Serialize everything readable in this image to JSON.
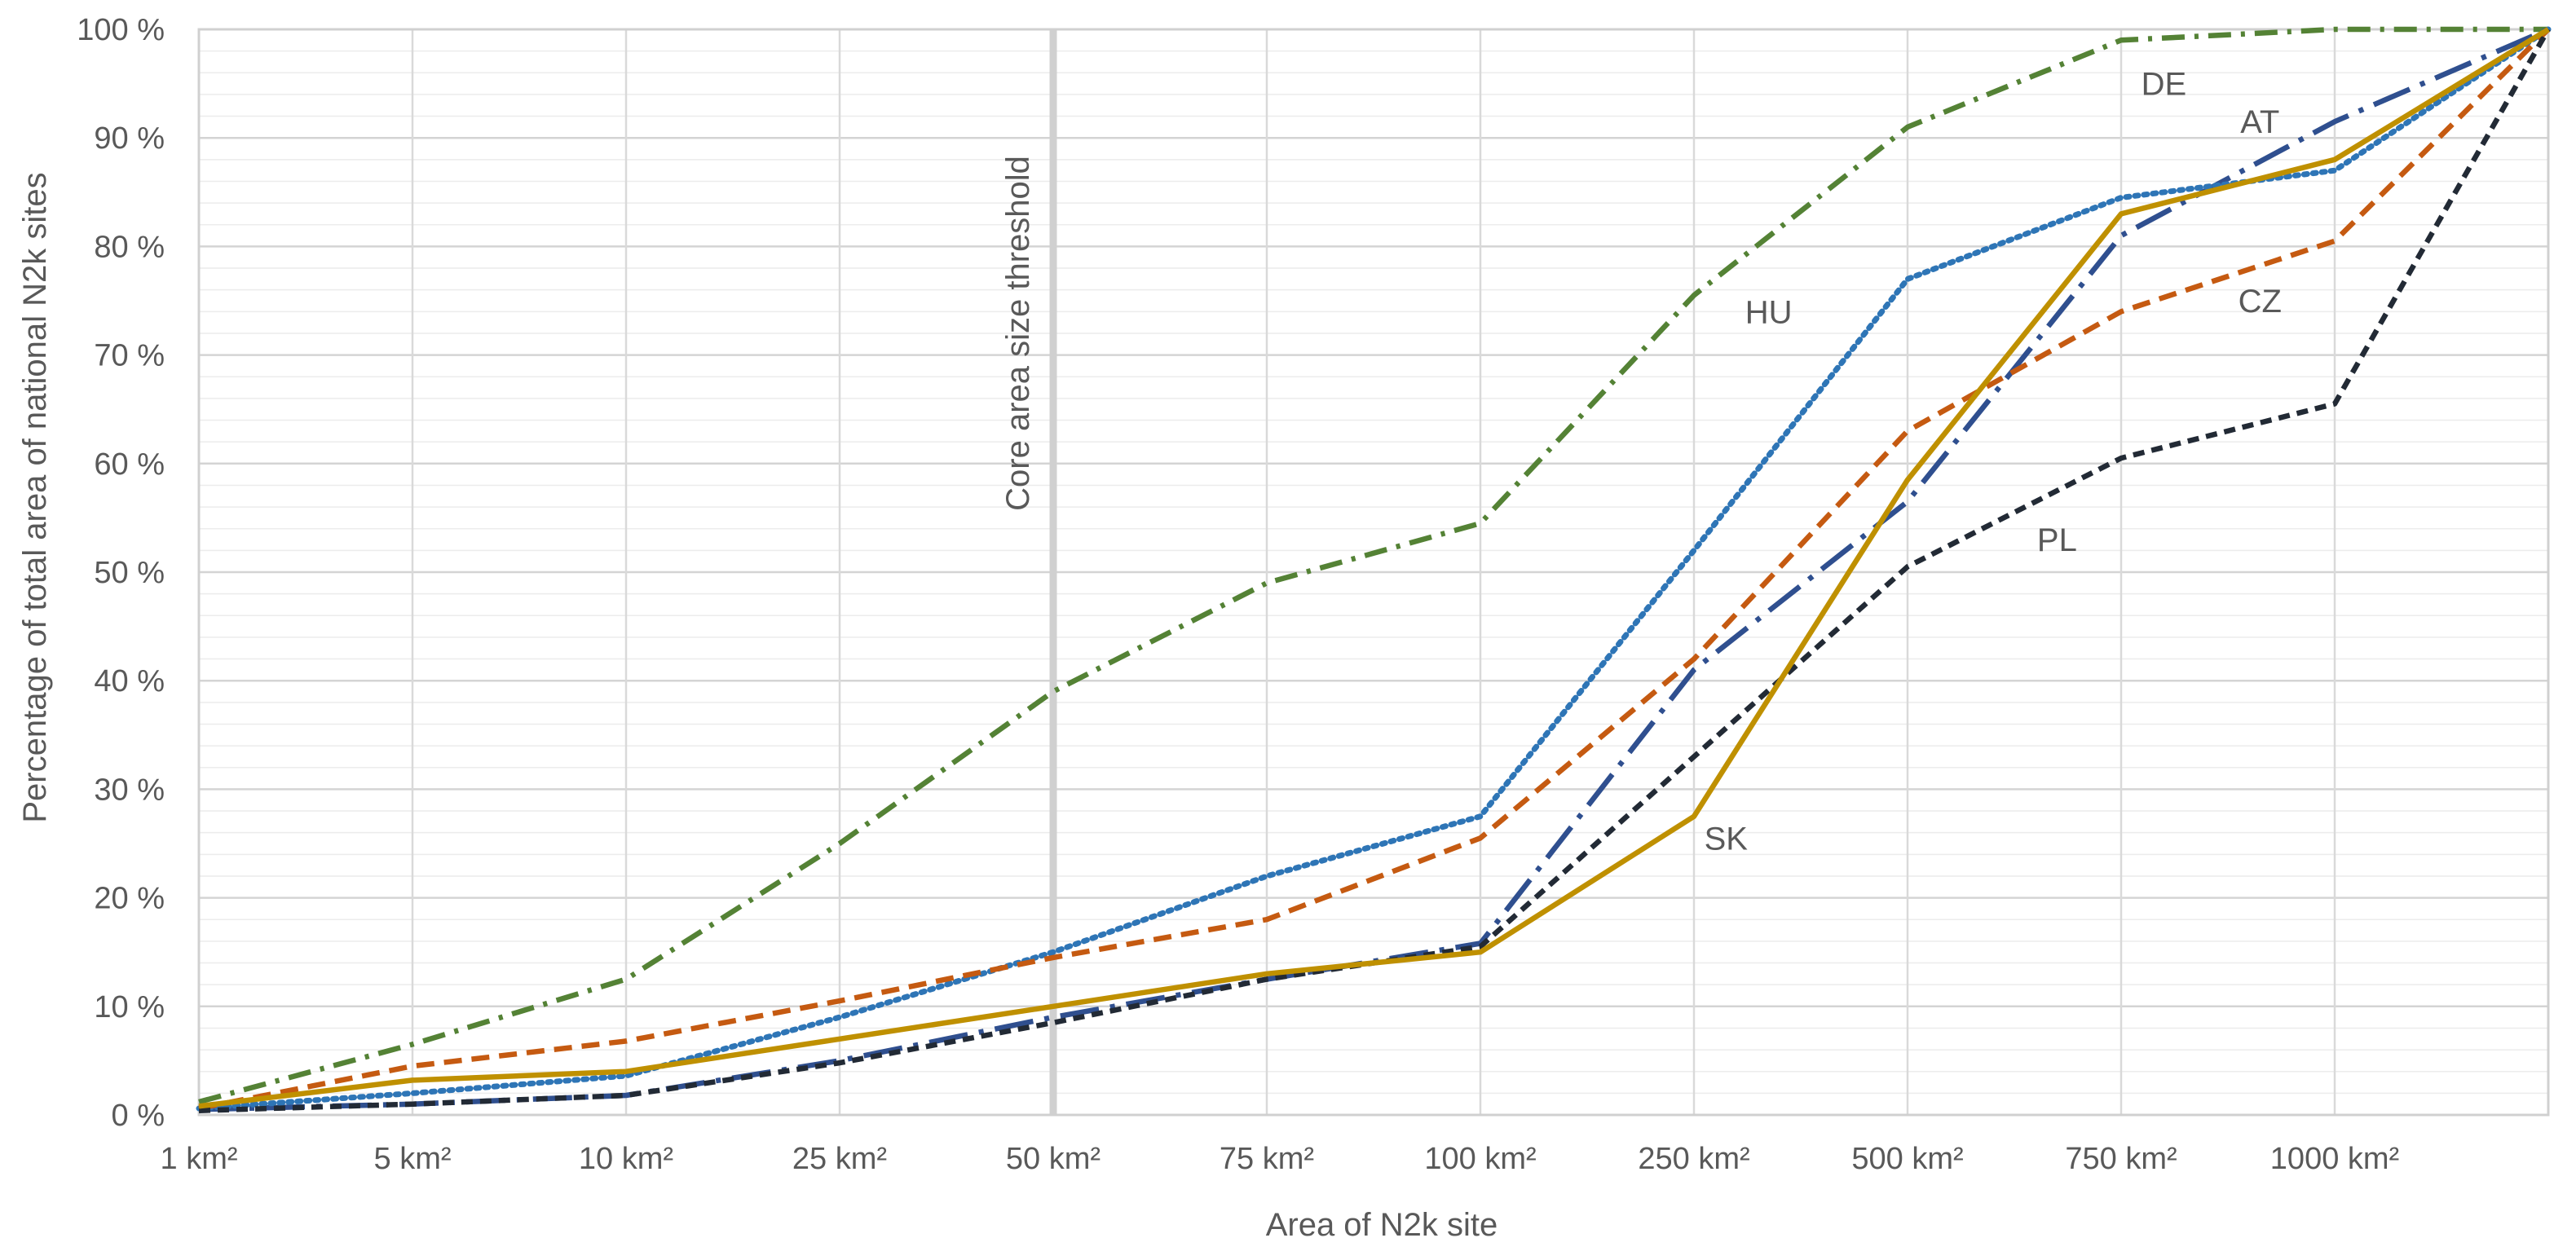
{
  "chart_data": {
    "type": "line",
    "title": "",
    "xlabel": "Area of N2k site",
    "ylabel": "Percentage of total area of national N2k sites",
    "categories": [
      "1 km²",
      "5 km²",
      "10 km²",
      "25 km²",
      "50 km²",
      "75 km²",
      "100 km²",
      "250 km²",
      "500 km²",
      "750 km²",
      "1000 km²",
      ""
    ],
    "ylim": [
      0,
      100
    ],
    "y_ticks": [
      0,
      10,
      20,
      30,
      40,
      50,
      60,
      70,
      80,
      90,
      100
    ],
    "y_tick_labels": [
      "0 %",
      "10 %",
      "20 %",
      "30 %",
      "40 %",
      "50 %",
      "60 %",
      "70 %",
      "80 %",
      "90 %",
      "100 %"
    ],
    "grid": true,
    "legend": "none",
    "threshold": {
      "category_index": 4,
      "label": "Core area size threshold",
      "color": "#d0d0d0"
    },
    "series": [
      {
        "name": "DE",
        "color": "#548235",
        "dash": "dashdot",
        "values": [
          1.2,
          6.5,
          12.5,
          25,
          39,
          49,
          54.5,
          75.5,
          91,
          99,
          100,
          100
        ],
        "label_at": [
          9.2,
          95
        ]
      },
      {
        "name": "AT",
        "color": "#2f4f8f",
        "dash": "longdashdot",
        "values": [
          0.5,
          1,
          1.8,
          5,
          9,
          12.5,
          15.8,
          41,
          56.5,
          81,
          91.5,
          100
        ],
        "label_at": [
          9.65,
          91.5
        ]
      },
      {
        "name": "HU",
        "color": "#2e75b6",
        "dash": "dotted",
        "values": [
          0.6,
          2,
          3.6,
          9,
          15,
          22,
          27.5,
          52,
          77,
          84.5,
          87,
          100
        ],
        "label_at": [
          7.35,
          74
        ]
      },
      {
        "name": "CZ",
        "color": "#c55a11",
        "dash": "dashed",
        "values": [
          0.6,
          4.5,
          6.8,
          10.5,
          14.5,
          18,
          25.5,
          42,
          63,
          74,
          80.5,
          100
        ],
        "label_at": [
          9.65,
          75
        ]
      },
      {
        "name": "PL",
        "color": "#222a35",
        "dash": "shortdash",
        "values": [
          0.4,
          1,
          1.8,
          4.8,
          8.5,
          12.5,
          15.5,
          33,
          50.5,
          60.5,
          65.5,
          100
        ],
        "label_at": [
          8.7,
          53
        ]
      },
      {
        "name": "SK",
        "color": "#bf9000",
        "dash": "solid",
        "values": [
          0.8,
          3.2,
          4,
          7,
          10,
          13,
          15,
          27.5,
          58.5,
          83,
          88,
          100
        ],
        "label_at": [
          7.15,
          25.5
        ]
      }
    ]
  }
}
